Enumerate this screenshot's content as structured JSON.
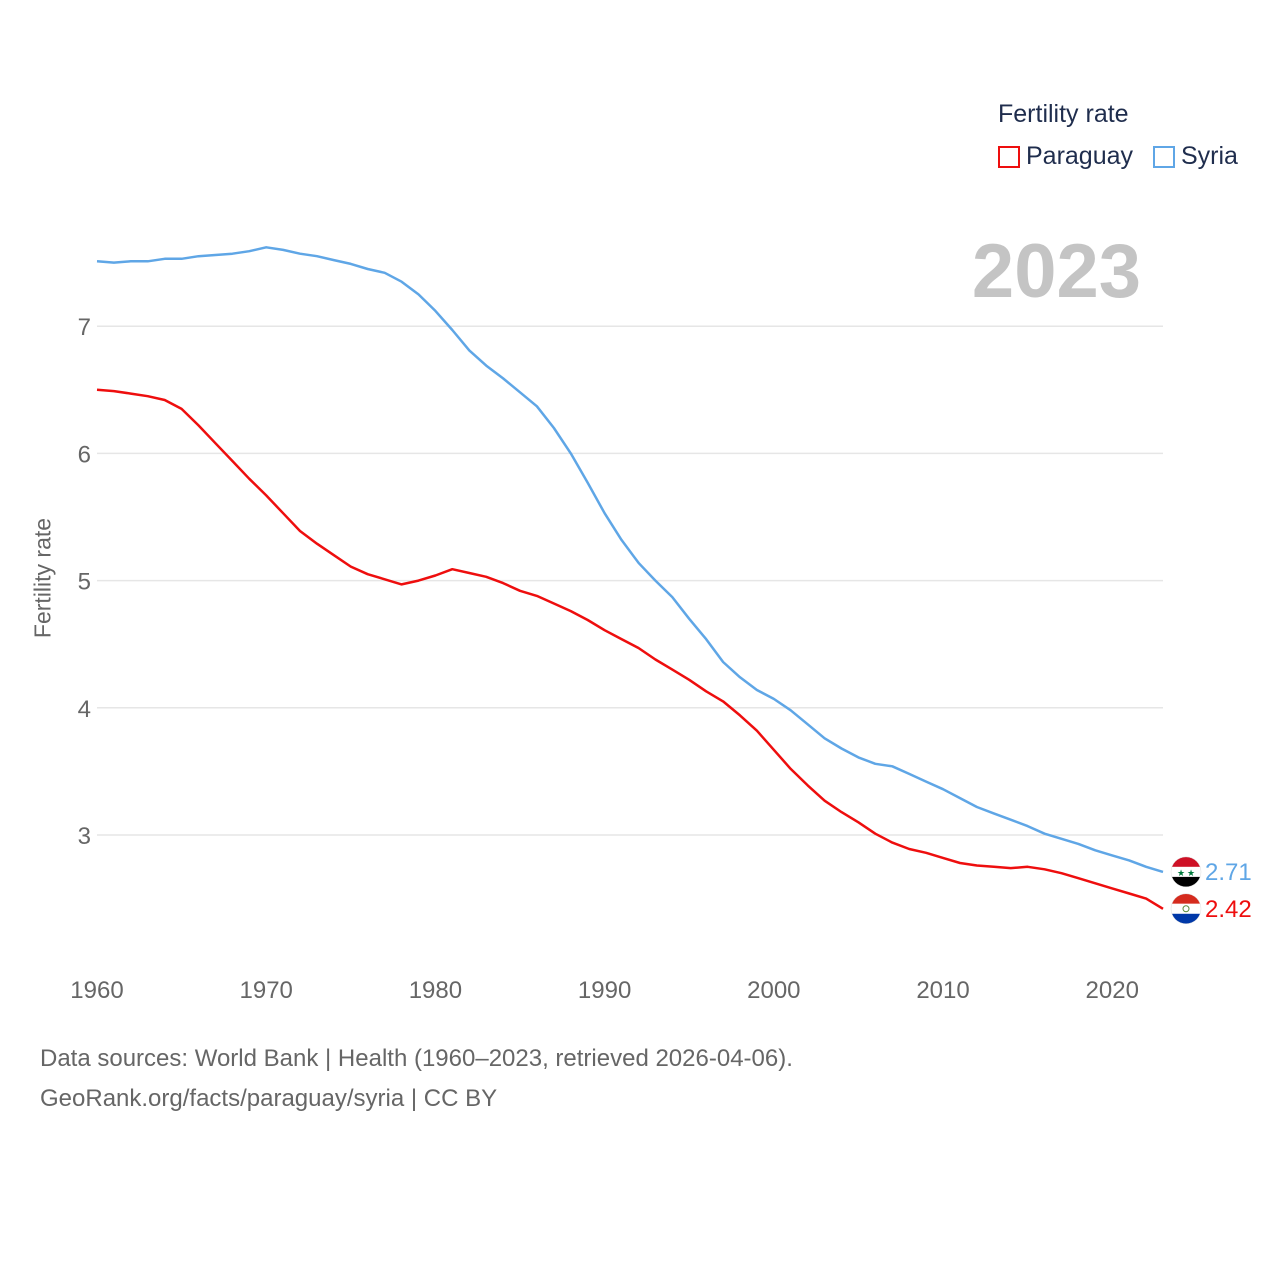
{
  "legend": {
    "title": "Fertility rate",
    "items": [
      {
        "label": "Paraguay",
        "color": "#ee0e0e"
      },
      {
        "label": "Syria",
        "color": "#5fa6e6"
      }
    ]
  },
  "year_display": "2023",
  "footer": {
    "line1": "Data sources: World Bank | Health (1960–2023, retrieved 2026-04-06).",
    "line2": "GeoRank.org/facts/paraguay/syria | CC BY"
  },
  "end_labels": {
    "syria": "2.71",
    "paraguay": "2.42"
  },
  "icons": {
    "syria": "syria-flag-icon",
    "paraguay": "paraguay-flag-icon"
  },
  "chart_data": {
    "type": "line",
    "title": "",
    "xlabel": "",
    "ylabel": "Fertility rate",
    "xlim": [
      1960,
      2023
    ],
    "ylim": [
      2.0,
      8.0
    ],
    "xticks": [
      1960,
      1970,
      1980,
      1990,
      2000,
      2010,
      2020
    ],
    "yticks": [
      3,
      4,
      5,
      6,
      7
    ],
    "x": [
      1960,
      1961,
      1962,
      1963,
      1964,
      1965,
      1966,
      1967,
      1968,
      1969,
      1970,
      1971,
      1972,
      1973,
      1974,
      1975,
      1976,
      1977,
      1978,
      1979,
      1980,
      1981,
      1982,
      1983,
      1984,
      1985,
      1986,
      1987,
      1988,
      1989,
      1990,
      1991,
      1992,
      1993,
      1994,
      1995,
      1996,
      1997,
      1998,
      1999,
      2000,
      2001,
      2002,
      2003,
      2004,
      2005,
      2006,
      2007,
      2008,
      2009,
      2010,
      2011,
      2012,
      2013,
      2014,
      2015,
      2016,
      2017,
      2018,
      2019,
      2020,
      2021,
      2022,
      2023
    ],
    "series": [
      {
        "name": "Paraguay",
        "color": "#ee0e0e",
        "values": [
          6.5,
          6.49,
          6.47,
          6.45,
          6.42,
          6.35,
          6.22,
          6.08,
          5.94,
          5.8,
          5.67,
          5.53,
          5.39,
          5.29,
          5.2,
          5.11,
          5.05,
          5.01,
          4.97,
          5.0,
          5.04,
          5.09,
          5.06,
          5.03,
          4.98,
          4.92,
          4.88,
          4.82,
          4.76,
          4.69,
          4.61,
          4.54,
          4.47,
          4.38,
          4.3,
          4.22,
          4.13,
          4.05,
          3.94,
          3.82,
          3.67,
          3.52,
          3.39,
          3.27,
          3.18,
          3.1,
          3.01,
          2.94,
          2.89,
          2.86,
          2.82,
          2.78,
          2.76,
          2.75,
          2.74,
          2.75,
          2.73,
          2.7,
          2.66,
          2.62,
          2.58,
          2.54,
          2.5,
          2.42
        ]
      },
      {
        "name": "Syria",
        "color": "#5fa6e6",
        "values": [
          7.51,
          7.5,
          7.51,
          7.51,
          7.53,
          7.53,
          7.55,
          7.56,
          7.57,
          7.59,
          7.62,
          7.6,
          7.57,
          7.55,
          7.52,
          7.49,
          7.45,
          7.42,
          7.35,
          7.25,
          7.12,
          6.97,
          6.81,
          6.69,
          6.59,
          6.48,
          6.37,
          6.2,
          6.0,
          5.77,
          5.53,
          5.32,
          5.14,
          5.0,
          4.87,
          4.7,
          4.54,
          4.36,
          4.24,
          4.14,
          4.07,
          3.98,
          3.87,
          3.76,
          3.68,
          3.61,
          3.56,
          3.54,
          3.48,
          3.42,
          3.36,
          3.29,
          3.22,
          3.17,
          3.12,
          3.07,
          3.01,
          2.97,
          2.93,
          2.88,
          2.84,
          2.8,
          2.75,
          2.71
        ]
      }
    ]
  }
}
